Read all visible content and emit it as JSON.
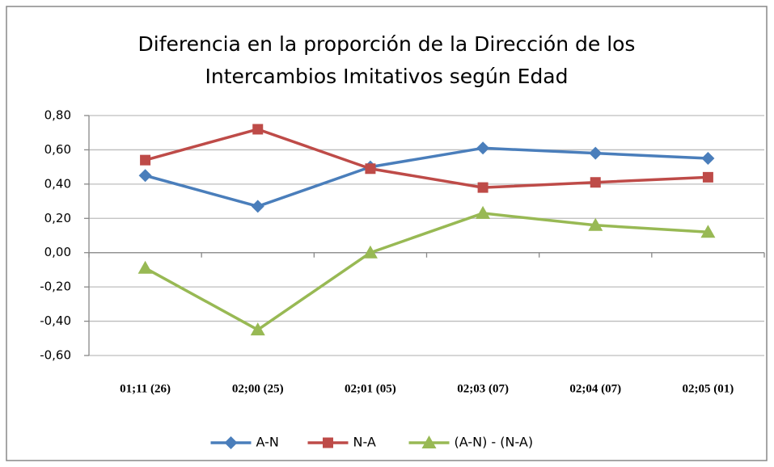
{
  "chart_data": {
    "type": "line",
    "title": [
      "Diferencia en la proporción de la Dirección de los",
      "Intercambios Imitativos según Edad"
    ],
    "categories": [
      "01;11 (26)",
      "02;00 (25)",
      "02;01 (05)",
      "02;03 (07)",
      "02;04 (07)",
      "02;05 (01)"
    ],
    "series": [
      {
        "name": "A-N",
        "color": "#4a7ebb",
        "marker": "diamond",
        "values": [
          0.45,
          0.27,
          0.5,
          0.61,
          0.58,
          0.55
        ]
      },
      {
        "name": "N-A",
        "color": "#be4b48",
        "marker": "square",
        "values": [
          0.54,
          0.72,
          0.49,
          0.38,
          0.41,
          0.44
        ]
      },
      {
        "name": "(A-N) - (N-A)",
        "color": "#98b954",
        "marker": "triangle",
        "values": [
          -0.09,
          -0.45,
          0.0,
          0.23,
          0.16,
          0.12
        ]
      }
    ],
    "ylim": [
      -0.6,
      0.8
    ],
    "yticks": [
      {
        "value": -0.6,
        "label": "-0,60"
      },
      {
        "value": -0.4,
        "label": "-0,40"
      },
      {
        "value": -0.2,
        "label": "-0,20"
      },
      {
        "value": 0,
        "label": "0,00"
      },
      {
        "value": 0.2,
        "label": "0,20"
      },
      {
        "value": 0.4,
        "label": "0,40"
      },
      {
        "value": 0.6,
        "label": "0,60"
      },
      {
        "value": 0.8,
        "label": "0,80"
      }
    ],
    "grid": true,
    "legend": "bottom"
  }
}
